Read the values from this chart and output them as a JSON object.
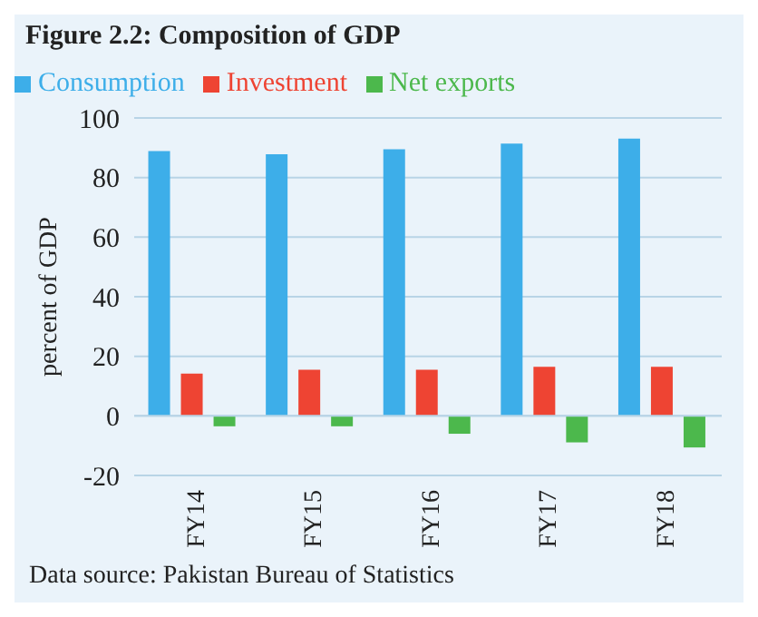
{
  "chart_data": {
    "type": "bar",
    "title": "Figure 2.2: Composition of GDP",
    "ylabel": "percent of GDP",
    "categories": [
      "FY14",
      "FY15",
      "FY16",
      "FY17",
      "FY18"
    ],
    "series": [
      {
        "name": "Consumption",
        "color": "#3daee9",
        "values": [
          88.9,
          87.8,
          89.5,
          91.4,
          93.1
        ]
      },
      {
        "name": "Investment",
        "color": "#ee4433",
        "values": [
          14.2,
          15.5,
          15.5,
          16.5,
          16.5
        ]
      },
      {
        "name": "Net exports",
        "color": "#4cb84c",
        "values": [
          -3.5,
          -3.5,
          -6,
          -8.9,
          -10.6
        ]
      }
    ],
    "ylim": [
      -20,
      100
    ],
    "yticks": [
      -20,
      0,
      20,
      40,
      60,
      80,
      100
    ],
    "grid": "y",
    "legend": "top left",
    "annotations": [
      "Data source: Pakistan Bureau of Statistics"
    ]
  }
}
